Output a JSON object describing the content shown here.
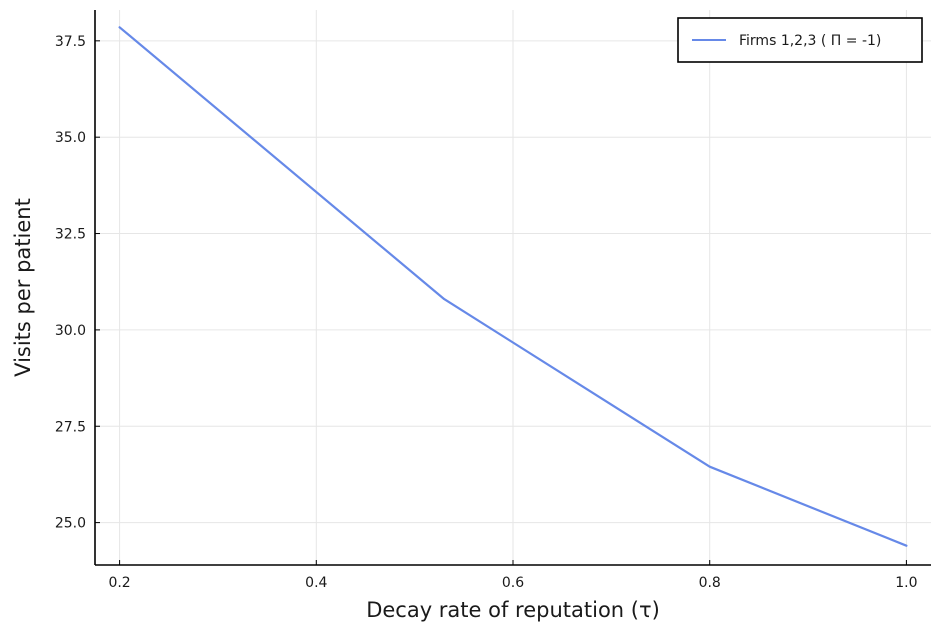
{
  "chart_data": {
    "type": "line",
    "title": "",
    "xlabel": "Decay rate of reputation (τ)",
    "ylabel": "Visits per patient",
    "xlim": [
      0.175,
      1.025
    ],
    "ylim": [
      23.9,
      38.3
    ],
    "xticks": [
      0.2,
      0.4,
      0.6,
      0.8,
      1.0
    ],
    "xtick_labels": [
      "0.2",
      "0.4",
      "0.6",
      "0.8",
      "1.0"
    ],
    "yticks": [
      25.0,
      27.5,
      30.0,
      32.5,
      35.0,
      37.5
    ],
    "ytick_labels": [
      "25.0",
      "27.5",
      "30.0",
      "32.5",
      "35.0",
      "37.5"
    ],
    "grid": true,
    "legend_position": "top-right",
    "series": [
      {
        "name": "Firms 1,2,3 ( Π = -1)",
        "color": "#6689e8",
        "x": [
          0.2,
          0.53,
          0.8,
          1.0
        ],
        "y": [
          37.85,
          30.8,
          26.45,
          24.4
        ]
      }
    ]
  }
}
